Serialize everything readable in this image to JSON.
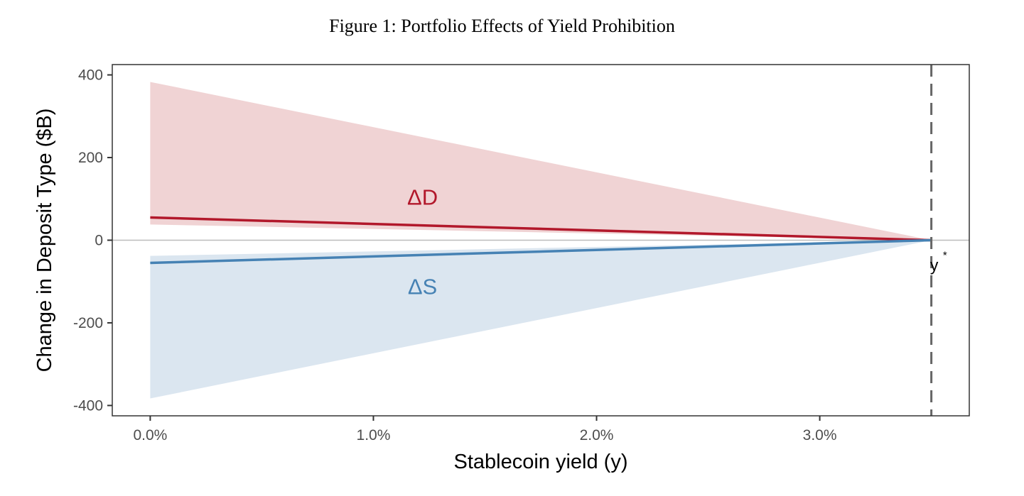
{
  "chart_data": {
    "type": "area",
    "title": "Figure 1: Portfolio Effects of Yield Prohibition",
    "xlabel": "Stablecoin yield (y)",
    "ylabel": "Change in Deposit Type ($B)",
    "xlim": [
      -0.17,
      3.67
    ],
    "ylim": [
      -425,
      425
    ],
    "x_ticks": [
      0,
      1,
      2,
      3
    ],
    "x_tick_labels": [
      "0.0%",
      "1.0%",
      "2.0%",
      "3.0%"
    ],
    "y_ticks": [
      400,
      200,
      0,
      -200,
      -400
    ],
    "y_tick_labels": [
      "400",
      "200",
      "0",
      "-200",
      "-400"
    ],
    "grid": false,
    "x_unit": "percent",
    "series": [
      {
        "label": "ΔD",
        "color": "#b2182b",
        "fill": "#f0d3d4",
        "x": [
          0,
          3.5
        ],
        "y": [
          55,
          0
        ],
        "band_lower": [
          38,
          0
        ],
        "band_upper": [
          383,
          0
        ]
      },
      {
        "label": "ΔS",
        "color": "#4682b4",
        "fill": "#dbe6f0",
        "x": [
          0,
          3.5
        ],
        "y": [
          -55,
          0
        ],
        "band_lower": [
          -383,
          0
        ],
        "band_upper": [
          -38,
          0
        ]
      }
    ],
    "annotations": [
      {
        "text": "ΔD",
        "x": 1.22,
        "y": 105,
        "color": "#b2182b"
      },
      {
        "text": "ΔS",
        "x": 1.22,
        "y": -112,
        "color": "#4682b4"
      },
      {
        "text": "y",
        "sup": "*",
        "x": 3.52,
        "y": -55
      }
    ],
    "reference_lines": [
      {
        "type": "vertical",
        "x": 3.5,
        "style": "dashed",
        "color": "#666666"
      },
      {
        "type": "horizontal",
        "y": 0,
        "color": "#bbbbbb"
      }
    ]
  }
}
